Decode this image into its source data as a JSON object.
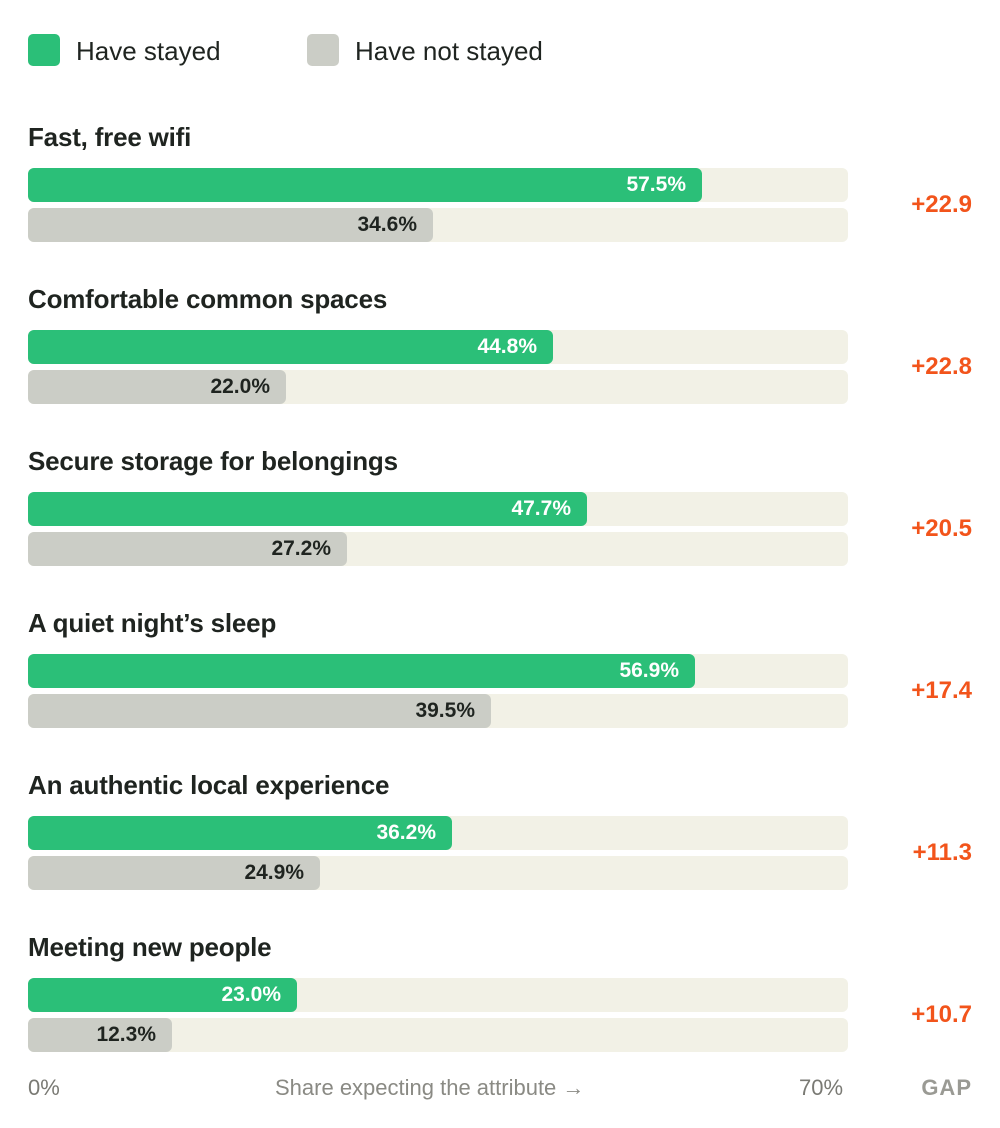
{
  "legend": [
    {
      "label": "Have stayed",
      "color": "#2bbf78"
    },
    {
      "label": "Have not stayed",
      "color": "#cbcdc6"
    }
  ],
  "chart_data": {
    "type": "bar",
    "orientation": "horizontal",
    "categories": [
      "Fast, free wifi",
      "Comfortable common spaces",
      "Secure storage for belongings",
      "A quiet night’s sleep",
      "An authentic local experience",
      "Meeting new people"
    ],
    "series": [
      {
        "name": "Have stayed",
        "color": "#2bbf78",
        "label_color": "#ffffff",
        "values": [
          57.5,
          44.8,
          47.7,
          56.9,
          36.2,
          23.0
        ],
        "labels": [
          "57.5%",
          "44.8%",
          "47.7%",
          "56.9%",
          "36.2%",
          "23.0%"
        ]
      },
      {
        "name": "Have not stayed",
        "color": "#cbcdc6",
        "label_color": "#1f2420",
        "values": [
          34.6,
          22.0,
          27.2,
          39.5,
          24.9,
          12.3
        ],
        "labels": [
          "34.6%",
          "22.0%",
          "27.2%",
          "39.5%",
          "24.9%",
          "12.3%"
        ]
      }
    ],
    "gap_labels": [
      "+22.9",
      "+22.8",
      "+20.5",
      "+17.4",
      "+11.3",
      "+10.7"
    ],
    "xlim": [
      0,
      70
    ],
    "x_tick_labels": [
      "0%",
      "70%"
    ],
    "xlabel": "Share expecting the attribute →",
    "gap_column_title": "GAP",
    "track_color": "#f2f1e6",
    "gap_color": "#f2541b"
  }
}
